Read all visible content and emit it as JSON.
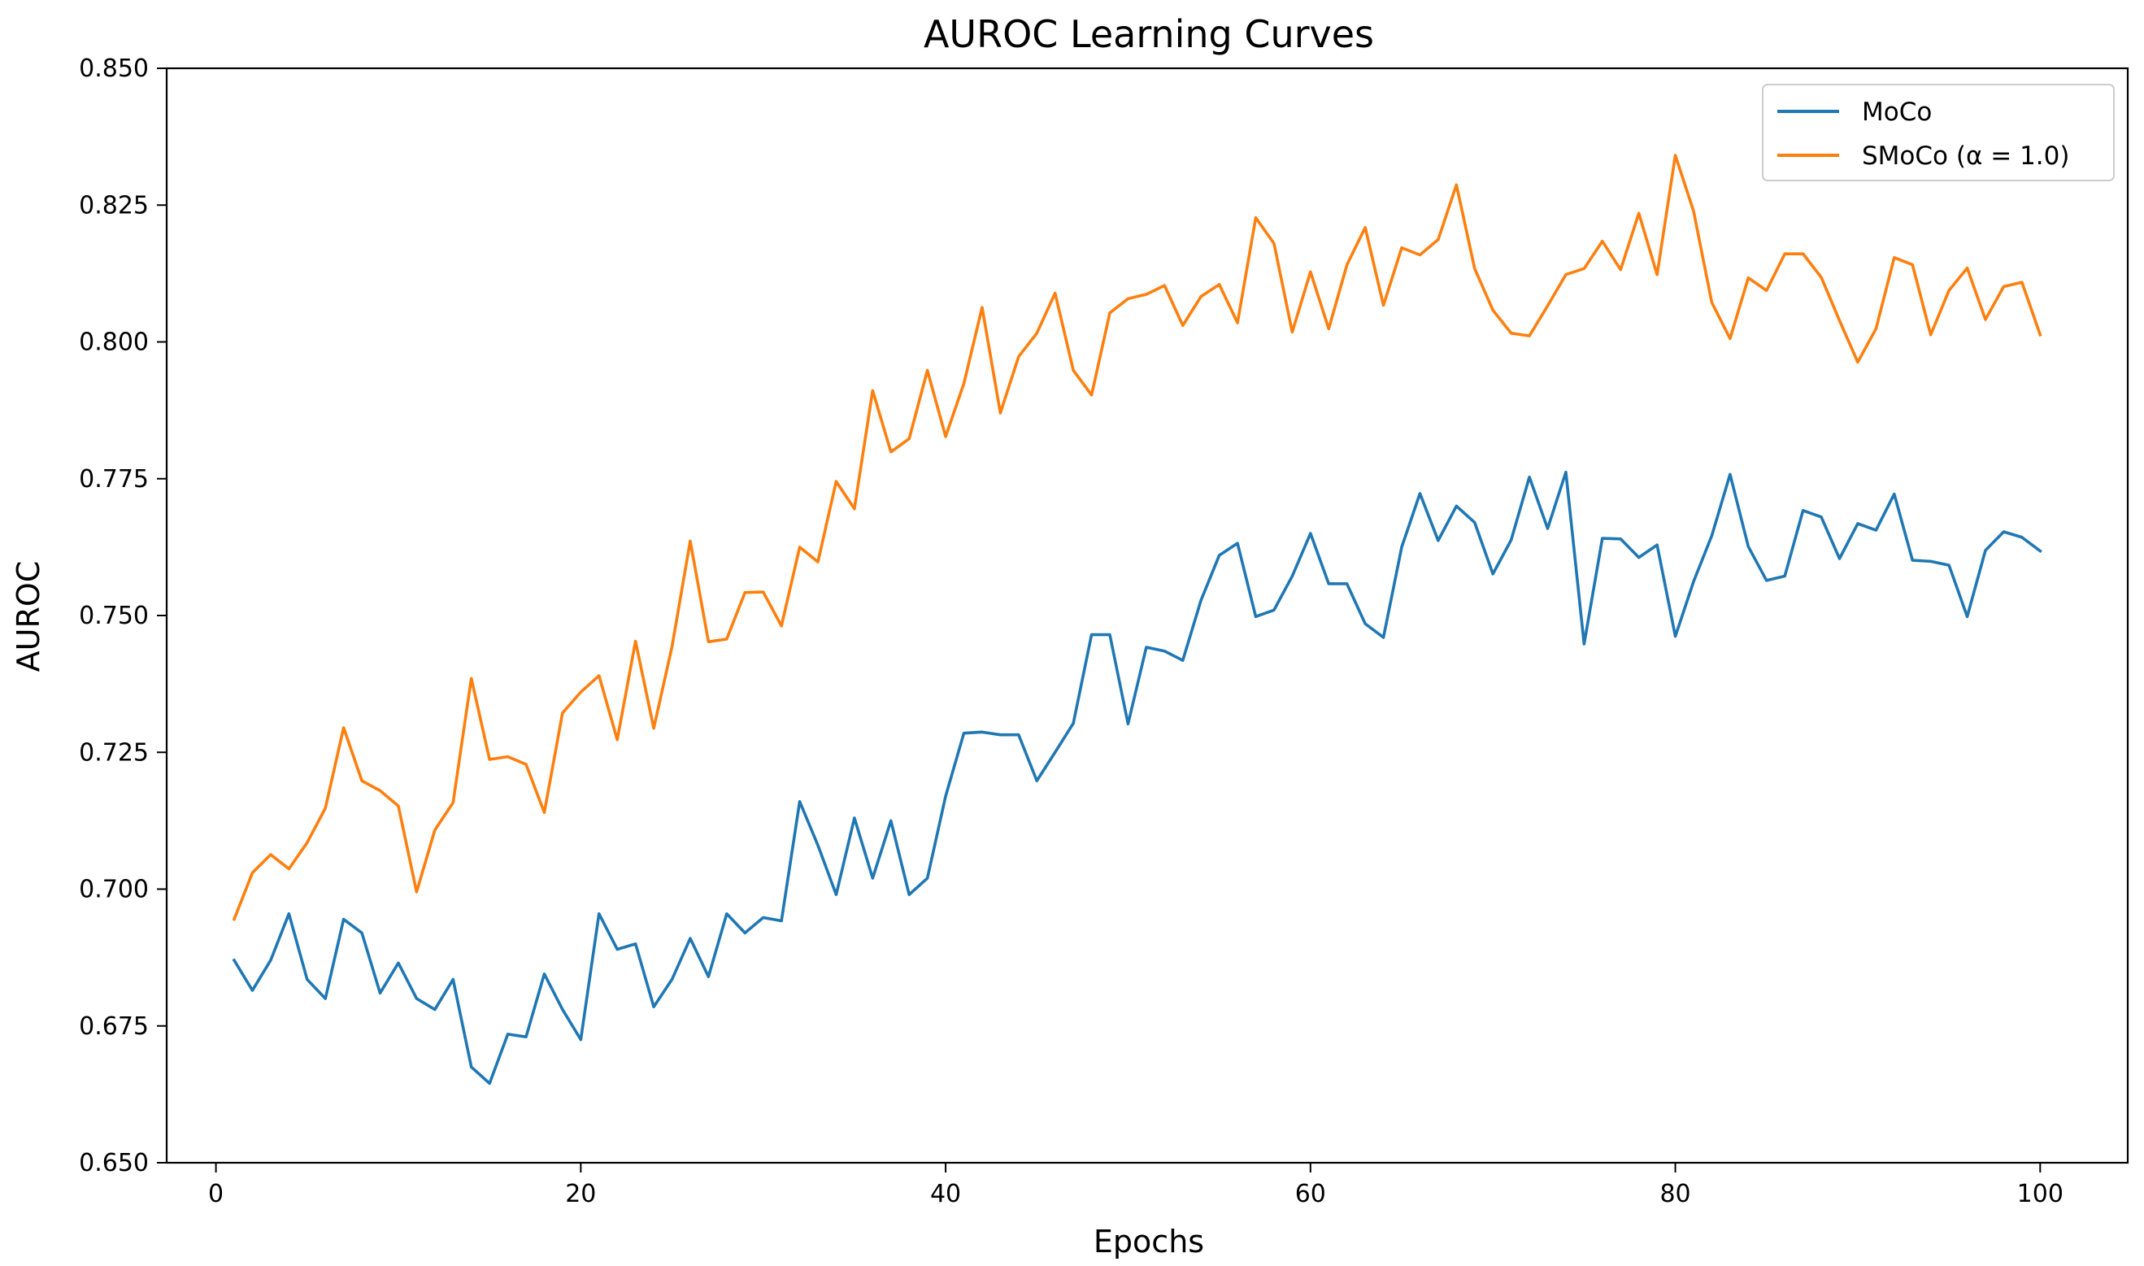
{
  "chart_data": {
    "type": "line",
    "title": "AUROC Learning Curves",
    "xlabel": "Epochs",
    "ylabel": "AUROC",
    "xlim": [
      -2.7,
      104.8
    ],
    "ylim": [
      0.65,
      0.85
    ],
    "x_ticks": [
      0,
      20,
      40,
      60,
      80,
      100
    ],
    "x_tick_labels": [
      "0",
      "20",
      "40",
      "60",
      "80",
      "100"
    ],
    "y_ticks": [
      0.65,
      0.675,
      0.7,
      0.725,
      0.75,
      0.775,
      0.8,
      0.825,
      0.85
    ],
    "y_tick_labels": [
      "0.650",
      "0.675",
      "0.700",
      "0.725",
      "0.750",
      "0.775",
      "0.800",
      "0.825",
      "0.850"
    ],
    "grid": false,
    "legend_position": "top-right",
    "x": [
      1,
      2,
      3,
      4,
      5,
      6,
      7,
      8,
      9,
      10,
      11,
      12,
      13,
      14,
      15,
      16,
      17,
      18,
      19,
      20,
      21,
      22,
      23,
      24,
      25,
      26,
      27,
      28,
      29,
      30,
      31,
      32,
      33,
      34,
      35,
      36,
      37,
      38,
      39,
      40,
      41,
      42,
      43,
      44,
      45,
      46,
      47,
      48,
      49,
      50,
      51,
      52,
      53,
      54,
      55,
      56,
      57,
      58,
      59,
      60,
      61,
      62,
      63,
      64,
      65,
      66,
      67,
      68,
      69,
      70,
      71,
      72,
      73,
      74,
      75,
      76,
      77,
      78,
      79,
      80,
      81,
      82,
      83,
      84,
      85,
      86,
      87,
      88,
      89,
      90,
      91,
      92,
      93,
      94,
      95,
      96,
      97,
      98,
      99,
      100
    ],
    "series": [
      {
        "name": "MoCo",
        "color": "#1f77b4",
        "values": [
          0.687,
          0.6815,
          0.687,
          0.6955,
          0.6835,
          0.68,
          0.6945,
          0.692,
          0.681,
          0.6865,
          0.68,
          0.678,
          0.6835,
          0.6675,
          0.6645,
          0.6735,
          0.673,
          0.6845,
          0.678,
          0.6725,
          0.6955,
          0.689,
          0.69,
          0.6785,
          0.6835,
          0.691,
          0.684,
          0.6955,
          0.692,
          0.6948,
          0.6942,
          0.716,
          0.708,
          0.699,
          0.713,
          0.702,
          0.7125,
          0.699,
          0.702,
          0.717,
          0.7285,
          0.7287,
          0.7282,
          0.7282,
          0.7198,
          0.725,
          0.7303,
          0.7465,
          0.7465,
          0.7302,
          0.7442,
          0.7435,
          0.7418,
          0.7528,
          0.761,
          0.7632,
          0.7498,
          0.751,
          0.7572,
          0.765,
          0.7558,
          0.7558,
          0.7485,
          0.746,
          0.7625,
          0.7723,
          0.7637,
          0.77,
          0.767,
          0.7576,
          0.7638,
          0.7753,
          0.7659,
          0.7762,
          0.7448,
          0.7641,
          0.764,
          0.7606,
          0.7629,
          0.7462,
          0.7562,
          0.7646,
          0.7758,
          0.7626,
          0.7564,
          0.7572,
          0.7692,
          0.768,
          0.7604,
          0.7668,
          0.7656,
          0.7722,
          0.7601,
          0.7599,
          0.7592,
          0.7498,
          0.7619,
          0.7653,
          0.7643,
          0.7618
        ]
      },
      {
        "name": "SMoCo (α = 1.0)",
        "color": "#ff7f0e",
        "values": [
          0.6945,
          0.703,
          0.7063,
          0.7037,
          0.7085,
          0.7148,
          0.7295,
          0.7198,
          0.718,
          0.7152,
          0.6995,
          0.7108,
          0.7158,
          0.7385,
          0.7237,
          0.7242,
          0.7228,
          0.714,
          0.7322,
          0.736,
          0.739,
          0.7273,
          0.7453,
          0.7294,
          0.7443,
          0.7636,
          0.7452,
          0.7457,
          0.7542,
          0.7543,
          0.7481,
          0.7625,
          0.7598,
          0.7745,
          0.7695,
          0.7911,
          0.7799,
          0.7823,
          0.7948,
          0.7827,
          0.7924,
          0.8063,
          0.787,
          0.7973,
          0.8016,
          0.8089,
          0.7948,
          0.7903,
          0.8053,
          0.8079,
          0.8087,
          0.8103,
          0.803,
          0.8083,
          0.8105,
          0.8035,
          0.8227,
          0.818,
          0.8018,
          0.8128,
          0.8024,
          0.8141,
          0.8209,
          0.8067,
          0.8172,
          0.8159,
          0.8187,
          0.8287,
          0.8134,
          0.8058,
          0.8016,
          0.8011,
          0.8066,
          0.8123,
          0.8134,
          0.8184,
          0.8132,
          0.8235,
          0.8123,
          0.8341,
          0.8239,
          0.8072,
          0.8006,
          0.8117,
          0.8094,
          0.8161,
          0.8161,
          0.8118,
          0.8039,
          0.7963,
          0.8024,
          0.8154,
          0.8141,
          0.8013,
          0.8094,
          0.8135,
          0.8041,
          0.8101,
          0.8109,
          0.8013
        ]
      }
    ]
  }
}
